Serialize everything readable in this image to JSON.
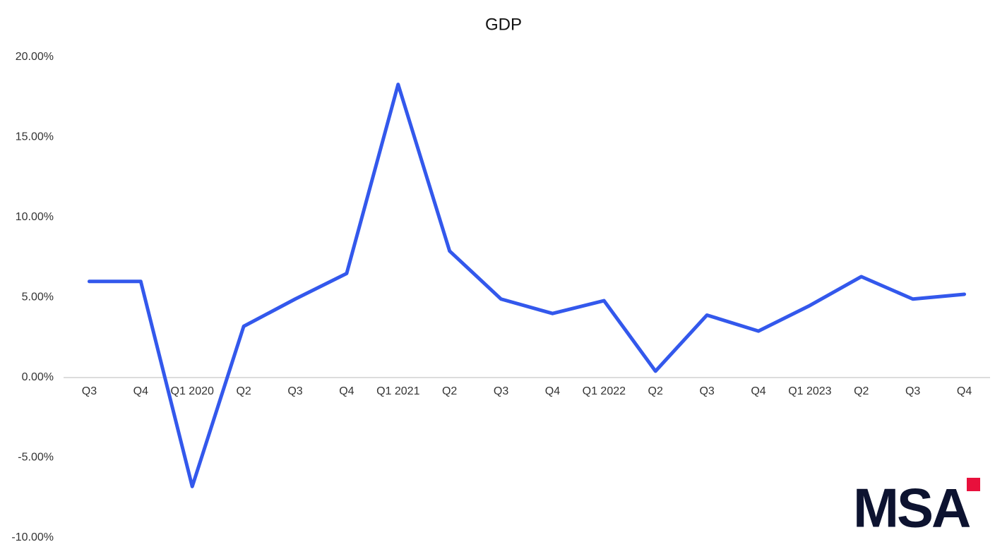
{
  "chart_data": {
    "type": "line",
    "title": "GDP",
    "categories": [
      "Q3",
      "Q4",
      "Q1 2020",
      "Q2",
      "Q3",
      "Q4",
      "Q1 2021",
      "Q2",
      "Q3",
      "Q4",
      "Q1 2022",
      "Q2",
      "Q3",
      "Q4",
      "Q1 2023",
      "Q2",
      "Q3",
      "Q4"
    ],
    "series": [
      {
        "color": "#3358ec",
        "values": [
          6.0,
          6.0,
          -6.8,
          3.2,
          4.9,
          6.5,
          18.3,
          7.9,
          4.9,
          4.0,
          4.8,
          0.4,
          3.9,
          2.9,
          4.5,
          6.3,
          4.9,
          5.2
        ]
      }
    ],
    "ylim": [
      -10,
      20
    ],
    "yticks": [
      {
        "value": -10,
        "label": "-10.00%"
      },
      {
        "value": -5,
        "label": "-5.00%"
      },
      {
        "value": 0,
        "label": "0.00%"
      },
      {
        "value": 5,
        "label": "5.00%"
      },
      {
        "value": 10,
        "label": "10.00%"
      },
      {
        "value": 15,
        "label": "15.00%"
      },
      {
        "value": 20,
        "label": "20.00%"
      }
    ],
    "grid": false
  },
  "logo": "MSA"
}
